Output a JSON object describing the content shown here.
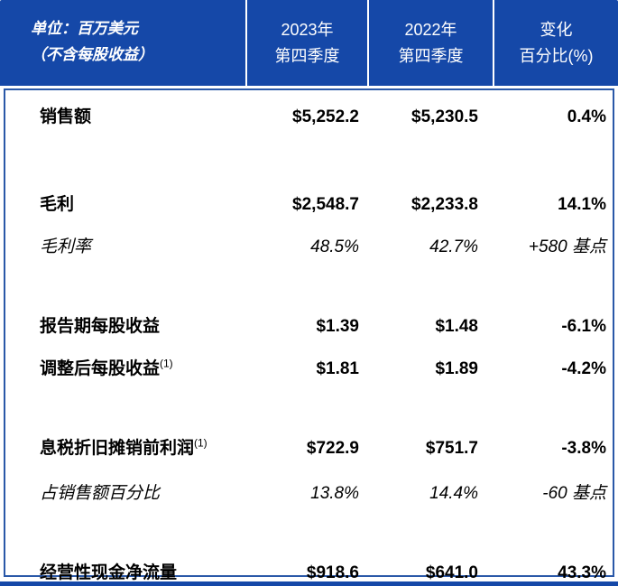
{
  "colors": {
    "header_bg": "#1548a8",
    "body_border": "#2a58a8",
    "header_text": "#ffffff",
    "body_text": "#000000"
  },
  "header": {
    "unit_note": {
      "line1": "单位：百万美元",
      "line2": "（不含每股收益）"
    },
    "columns": [
      {
        "line1": "2023年",
        "line2": "第四季度"
      },
      {
        "line1": "2022年",
        "line2": "第四季度"
      },
      {
        "line1": "变化",
        "line2": "百分比(%)"
      }
    ]
  },
  "rows": [
    {
      "label": "销售额",
      "sup": "",
      "q4_2023": "$5,252.2",
      "q4_2022": "$5,230.5",
      "change": "0.4%",
      "emphasis": "bold"
    },
    {
      "label": "毛利",
      "sup": "",
      "q4_2023": "$2,548.7",
      "q4_2022": "$2,233.8",
      "change": "14.1%",
      "emphasis": "bold"
    },
    {
      "label": "毛利率",
      "sup": "",
      "q4_2023": "48.5%",
      "q4_2022": "42.7%",
      "change": "+580 基点",
      "emphasis": "italic"
    },
    {
      "label": "报告期每股收益",
      "sup": "",
      "q4_2023": "$1.39",
      "q4_2022": "$1.48",
      "change": "-6.1%",
      "emphasis": "bold"
    },
    {
      "label": "调整后每股收益",
      "sup": "(1)",
      "q4_2023": "$1.81",
      "q4_2022": "$1.89",
      "change": "-4.2%",
      "emphasis": "bold"
    },
    {
      "label": "息税折旧摊销前利润",
      "sup": "(1)",
      "q4_2023": "$722.9",
      "q4_2022": "$751.7",
      "change": "-3.8%",
      "emphasis": "bold"
    },
    {
      "label": "占销售额百分比",
      "sup": "",
      "q4_2023": "13.8%",
      "q4_2022": "14.4%",
      "change": "-60 基点",
      "emphasis": "italic"
    },
    {
      "label": "经营性现金净流量",
      "sup": "",
      "q4_2023": "$918.6",
      "q4_2022": "$641.0",
      "change": "43.3%",
      "emphasis": "bold"
    }
  ],
  "chart_data": {
    "type": "table",
    "title": "单位：百万美元（不含每股收益）",
    "columns": [
      "",
      "2023年第四季度",
      "2022年第四季度",
      "变化百分比(%)"
    ],
    "rows": [
      [
        "销售额",
        "$5,252.2",
        "$5,230.5",
        "0.4%"
      ],
      [
        "毛利",
        "$2,548.7",
        "$2,233.8",
        "14.1%"
      ],
      [
        "毛利率",
        "48.5%",
        "42.7%",
        "+580 基点"
      ],
      [
        "报告期每股收益",
        "$1.39",
        "$1.48",
        "-6.1%"
      ],
      [
        "调整后每股收益(1)",
        "$1.81",
        "$1.89",
        "-4.2%"
      ],
      [
        "息税折旧摊销前利润(1)",
        "$722.9",
        "$751.7",
        "-3.8%"
      ],
      [
        "占销售额百分比",
        "13.8%",
        "14.4%",
        "-60 基点"
      ],
      [
        "经营性现金净流量",
        "$918.6",
        "$641.0",
        "43.3%"
      ]
    ]
  }
}
